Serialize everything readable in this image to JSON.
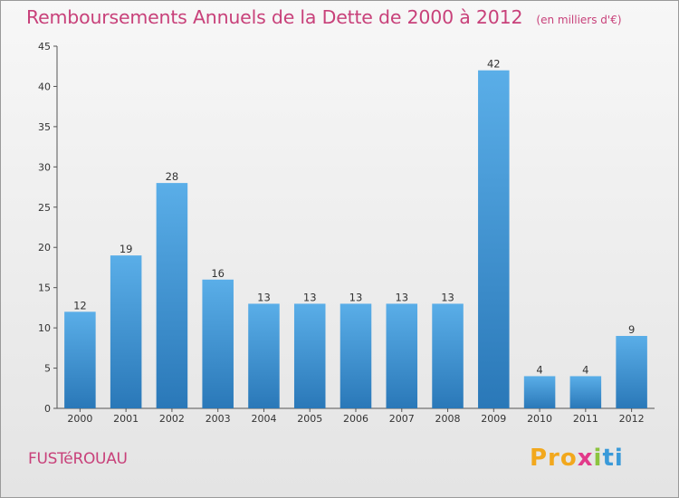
{
  "header": {
    "title": "Remboursements Annuels de la Dette de 2000 à 2012",
    "subtitle": "(en milliers d'€)"
  },
  "footer": {
    "commune": "FUSTéROUAU",
    "logo": [
      "Pro",
      "x",
      "i",
      "ti"
    ]
  },
  "colors": {
    "title": "#c8417a",
    "bar_top": "#5aaee8",
    "bar_bottom": "#2a78b8",
    "logo_orange": "#f2a81d",
    "logo_pink": "#e23a8a",
    "logo_green": "#8cc43f",
    "logo_blue": "#3a9ad9"
  },
  "chart_data": {
    "type": "bar",
    "title": "Remboursements Annuels de la Dette de 2000 à 2012",
    "subtitle": "(en milliers d'€)",
    "xlabel": "",
    "ylabel": "",
    "categories": [
      "2000",
      "2001",
      "2002",
      "2003",
      "2004",
      "2005",
      "2006",
      "2007",
      "2008",
      "2009",
      "2010",
      "2011",
      "2012"
    ],
    "values": [
      12,
      19,
      28,
      16,
      13,
      13,
      13,
      13,
      13,
      42,
      4,
      4,
      9
    ],
    "ylim": [
      0,
      45
    ],
    "yticks": [
      0,
      5,
      10,
      15,
      20,
      25,
      30,
      35,
      40,
      45
    ],
    "grid": false,
    "legend": "none",
    "data_labels": true
  }
}
